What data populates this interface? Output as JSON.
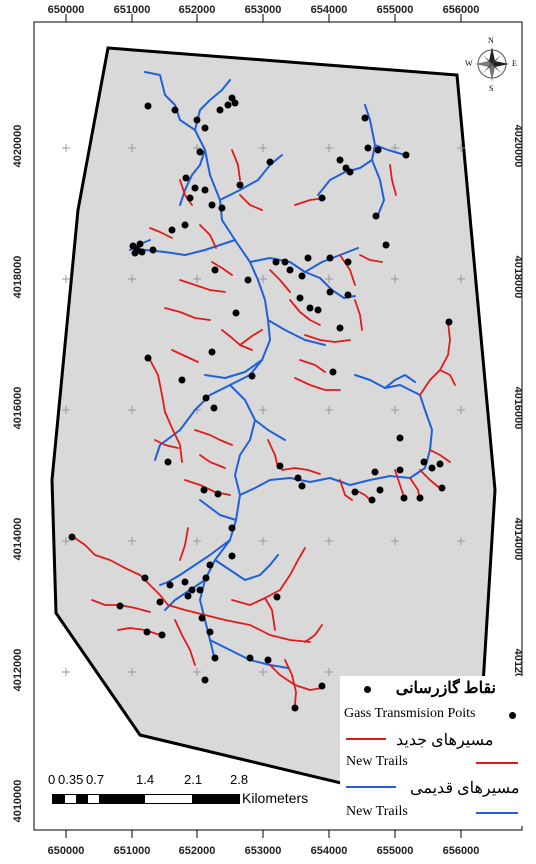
{
  "axes": {
    "x_ticks": [
      "650000",
      "651000",
      "652000",
      "653000",
      "654000",
      "655000",
      "656000"
    ],
    "y_ticks": [
      "4020000",
      "4018000",
      "4016000",
      "4014000",
      "4012000",
      "4010000"
    ]
  },
  "compass": {
    "n": "N",
    "s": "S",
    "e": "E",
    "w": "W"
  },
  "legend": {
    "points_fa": "نقاط گازرسانی",
    "points_en": "Gass Transmision Poits",
    "new_fa": "مسیرهای جدید",
    "new_en": "New Trails",
    "old_fa": "مسیرهای قدیمی",
    "old_en": "New Trails"
  },
  "scale": {
    "labels": [
      "0",
      "0.35",
      "0.7",
      "1.4",
      "2.1",
      "2.8"
    ],
    "unit": "Kilometers"
  },
  "colors": {
    "new_trail": "#e01b1b",
    "old_trail": "#2060d8",
    "area": "#d9d9d9",
    "points": "#000000"
  }
}
